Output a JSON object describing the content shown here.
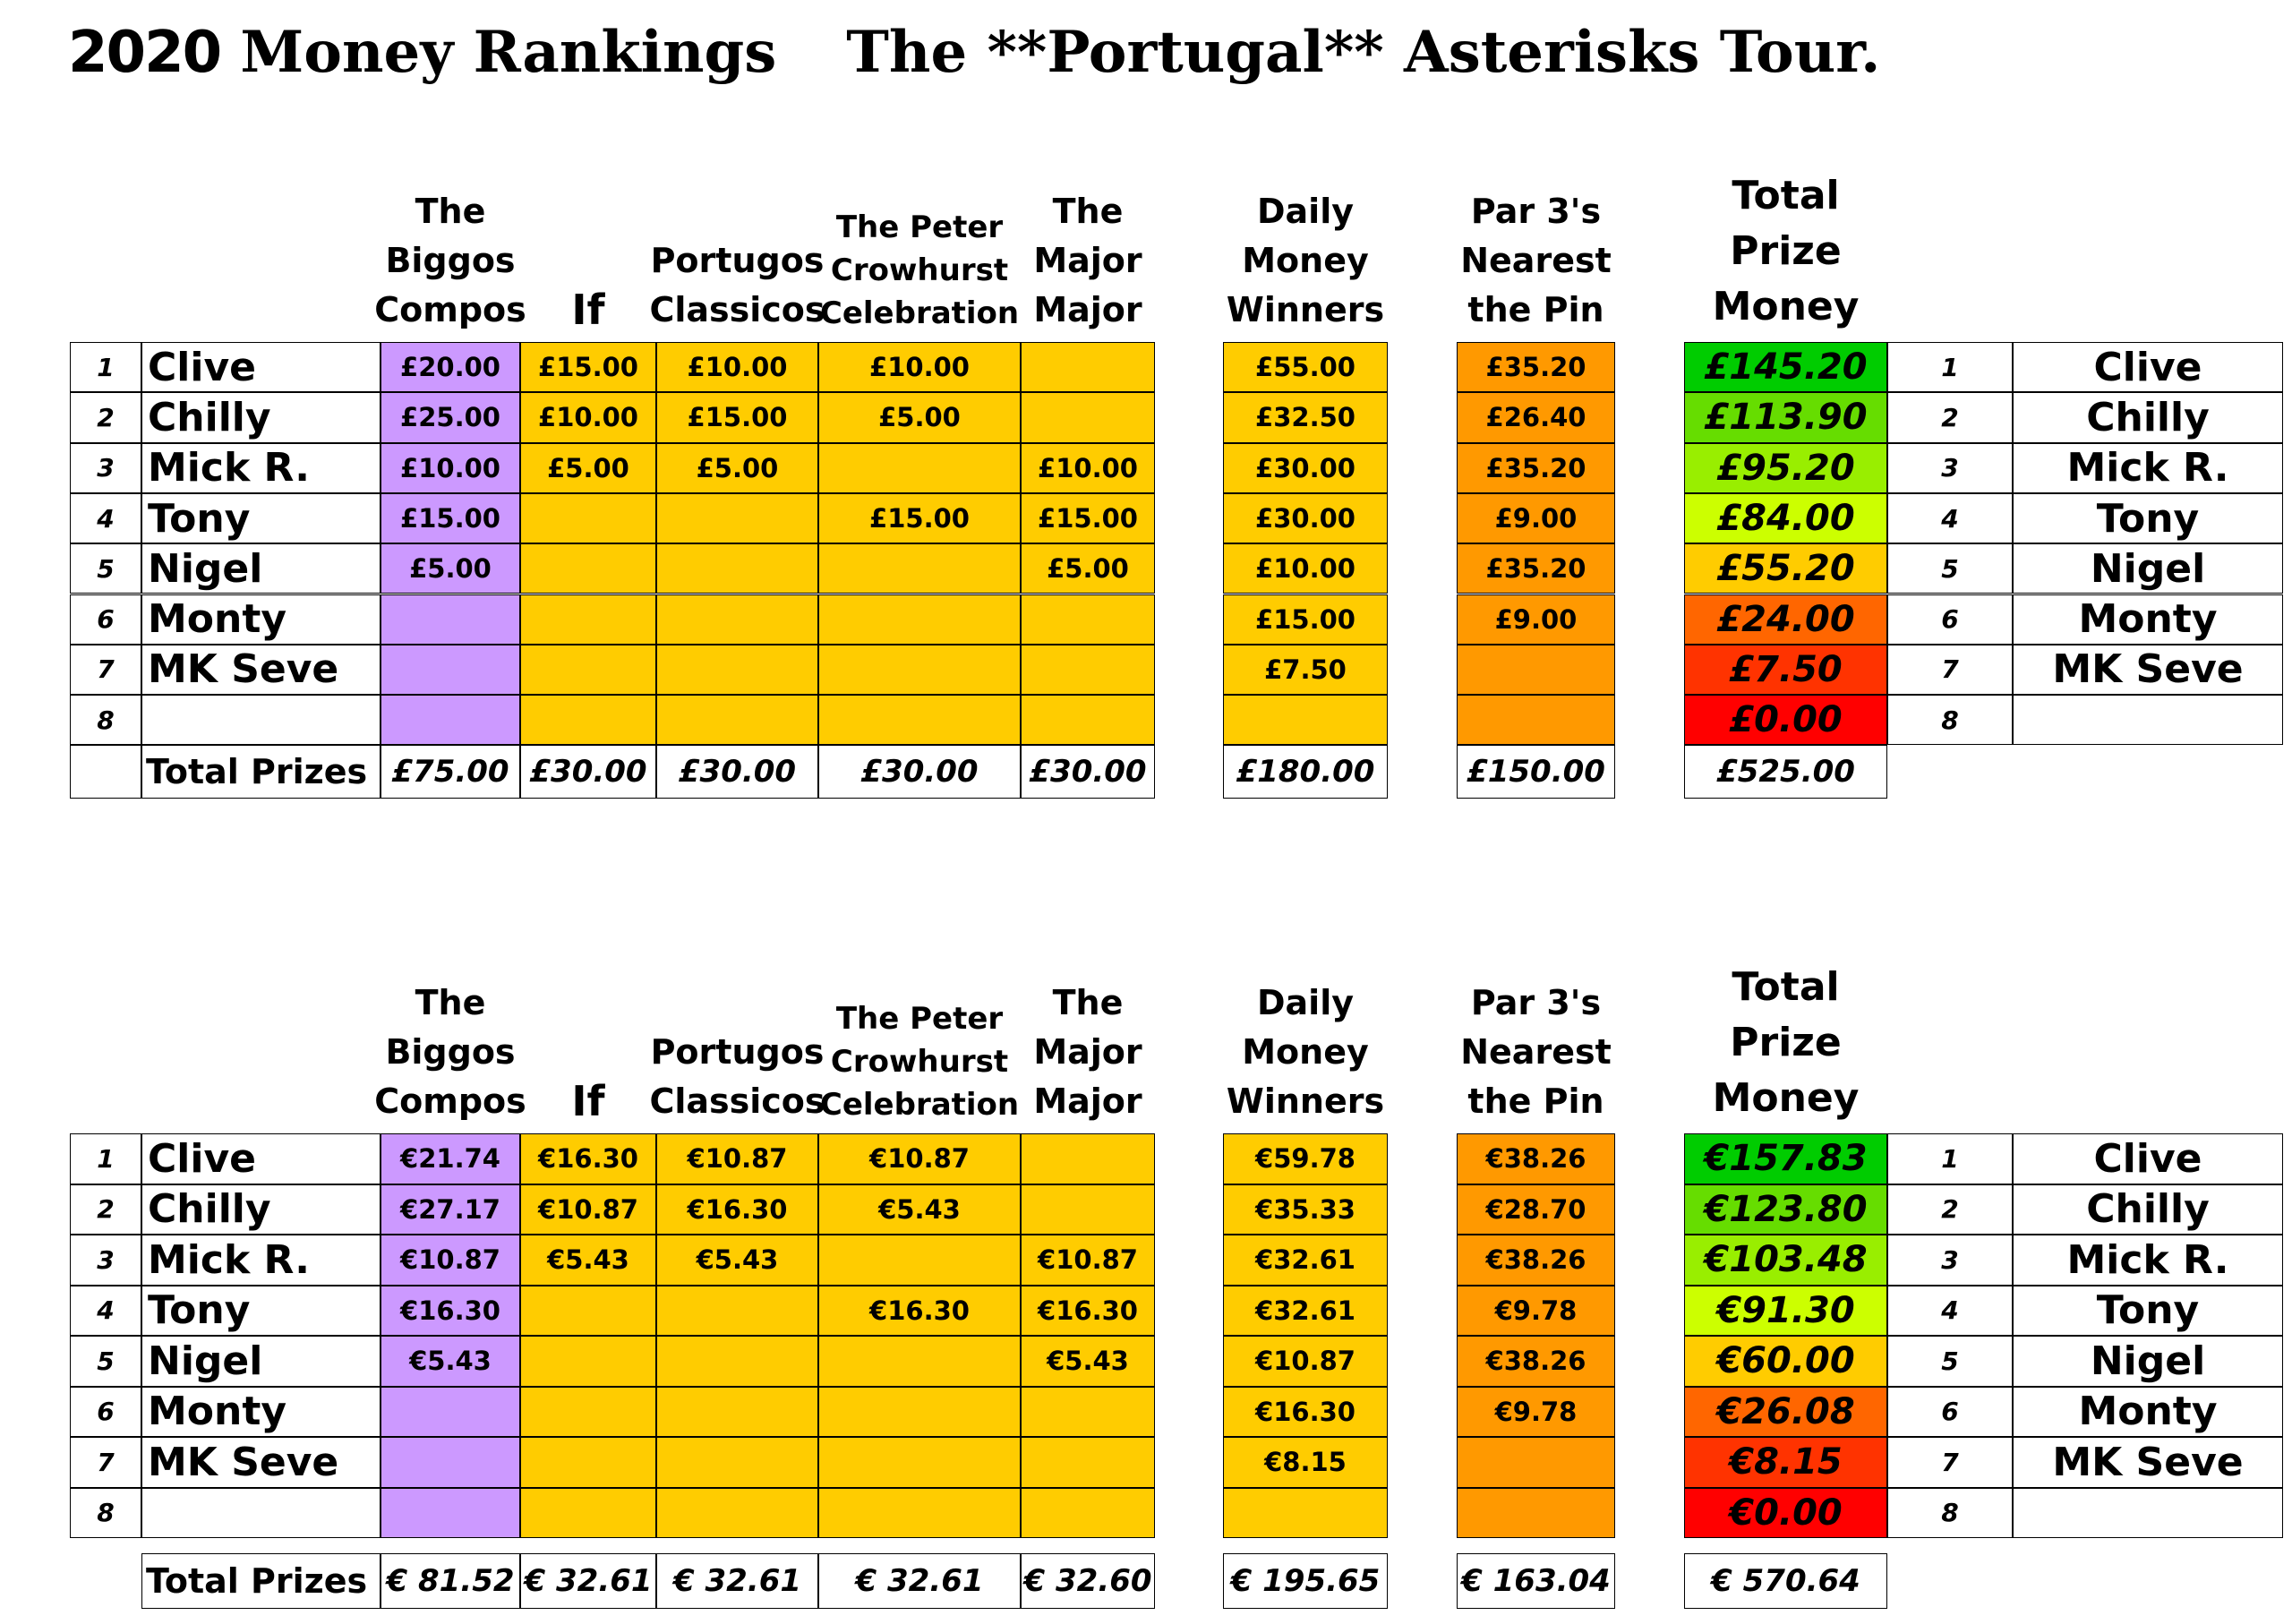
{
  "page": {
    "title_year": "2020",
    "title_main": "Money Rankings",
    "title_tour": "The **Portugal** Asterisks Tour."
  },
  "headers": {
    "biggos": [
      "The",
      "Biggos",
      "Compos"
    ],
    "if": [
      "If"
    ],
    "portugos": [
      "Portugos",
      "Classicos"
    ],
    "peter": [
      "The Peter",
      "Crowhurst",
      "Celebration"
    ],
    "major": [
      "The",
      "Major",
      "Major"
    ],
    "daily": [
      "Daily",
      "Money",
      "Winners"
    ],
    "par3": [
      "Par 3's",
      "Nearest",
      "the Pin"
    ],
    "total": [
      "Total",
      "Prize",
      "Money"
    ]
  },
  "colors": {
    "biggos": "#cc99ff",
    "gold": "#ffcc00",
    "orange": "#ff9900",
    "total_scale": [
      "#00cc00",
      "#66dd00",
      "#99ee00",
      "#ccff00",
      "#ffcc00",
      "#ff6600",
      "#ff3300",
      "#ff0000"
    ]
  },
  "players": [
    "Clive",
    "Chilly",
    "Mick R.",
    "Tony",
    "Nigel",
    "Monty",
    "MK Seve",
    ""
  ],
  "ranks": [
    "1",
    "2",
    "3",
    "4",
    "5",
    "6",
    "7",
    "8"
  ],
  "gbp": {
    "rows": [
      {
        "biggos": "£20.00",
        "if": "£15.00",
        "portugos": "£10.00",
        "peter": "£10.00",
        "major": "",
        "daily": "£55.00",
        "par3": "£35.20",
        "total": "£145.20"
      },
      {
        "biggos": "£25.00",
        "if": "£10.00",
        "portugos": "£15.00",
        "peter": "£5.00",
        "major": "",
        "daily": "£32.50",
        "par3": "£26.40",
        "total": "£113.90"
      },
      {
        "biggos": "£10.00",
        "if": "£5.00",
        "portugos": "£5.00",
        "peter": "",
        "major": "£10.00",
        "daily": "£30.00",
        "par3": "£35.20",
        "total": "£95.20"
      },
      {
        "biggos": "£15.00",
        "if": "",
        "portugos": "",
        "peter": "£15.00",
        "major": "£15.00",
        "daily": "£30.00",
        "par3": "£9.00",
        "total": "£84.00"
      },
      {
        "biggos": "£5.00",
        "if": "",
        "portugos": "",
        "peter": "",
        "major": "£5.00",
        "daily": "£10.00",
        "par3": "£35.20",
        "total": "£55.20"
      },
      {
        "biggos": "",
        "if": "",
        "portugos": "",
        "peter": "",
        "major": "",
        "daily": "£15.00",
        "par3": "£9.00",
        "total": "£24.00"
      },
      {
        "biggos": "",
        "if": "",
        "portugos": "",
        "peter": "",
        "major": "",
        "daily": "£7.50",
        "par3": "",
        "total": "£7.50"
      },
      {
        "biggos": "",
        "if": "",
        "portugos": "",
        "peter": "",
        "major": "",
        "daily": "",
        "par3": "",
        "total": "£0.00"
      }
    ],
    "totals": {
      "label": "Total Prizes",
      "biggos": "£75.00",
      "if": "£30.00",
      "portugos": "£30.00",
      "peter": "£30.00",
      "major": "£30.00",
      "daily": "£180.00",
      "par3": "£150.00",
      "total": "£525.00"
    }
  },
  "eur": {
    "rows": [
      {
        "biggos": "€21.74",
        "if": "€16.30",
        "portugos": "€10.87",
        "peter": "€10.87",
        "major": "",
        "daily": "€59.78",
        "par3": "€38.26",
        "total": "€157.83"
      },
      {
        "biggos": "€27.17",
        "if": "€10.87",
        "portugos": "€16.30",
        "peter": "€5.43",
        "major": "",
        "daily": "€35.33",
        "par3": "€28.70",
        "total": "€123.80"
      },
      {
        "biggos": "€10.87",
        "if": "€5.43",
        "portugos": "€5.43",
        "peter": "",
        "major": "€10.87",
        "daily": "€32.61",
        "par3": "€38.26",
        "total": "€103.48"
      },
      {
        "biggos": "€16.30",
        "if": "",
        "portugos": "",
        "peter": "€16.30",
        "major": "€16.30",
        "daily": "€32.61",
        "par3": "€9.78",
        "total": "€91.30"
      },
      {
        "biggos": "€5.43",
        "if": "",
        "portugos": "",
        "peter": "",
        "major": "€5.43",
        "daily": "€10.87",
        "par3": "€38.26",
        "total": "€60.00"
      },
      {
        "biggos": "",
        "if": "",
        "portugos": "",
        "peter": "",
        "major": "",
        "daily": "€16.30",
        "par3": "€9.78",
        "total": "€26.08"
      },
      {
        "biggos": "",
        "if": "",
        "portugos": "",
        "peter": "",
        "major": "",
        "daily": "€8.15",
        "par3": "",
        "total": "€8.15"
      },
      {
        "biggos": "",
        "if": "",
        "portugos": "",
        "peter": "",
        "major": "",
        "daily": "",
        "par3": "",
        "total": "€0.00"
      }
    ],
    "totals": {
      "label": "Total Prizes",
      "biggos": "€ 81.52",
      "if": "€ 32.61",
      "portugos": "€ 32.61",
      "peter": "€ 32.61",
      "major": "€ 32.60",
      "daily": "€ 195.65",
      "par3": "€ 163.04",
      "total": "€ 570.64"
    }
  }
}
